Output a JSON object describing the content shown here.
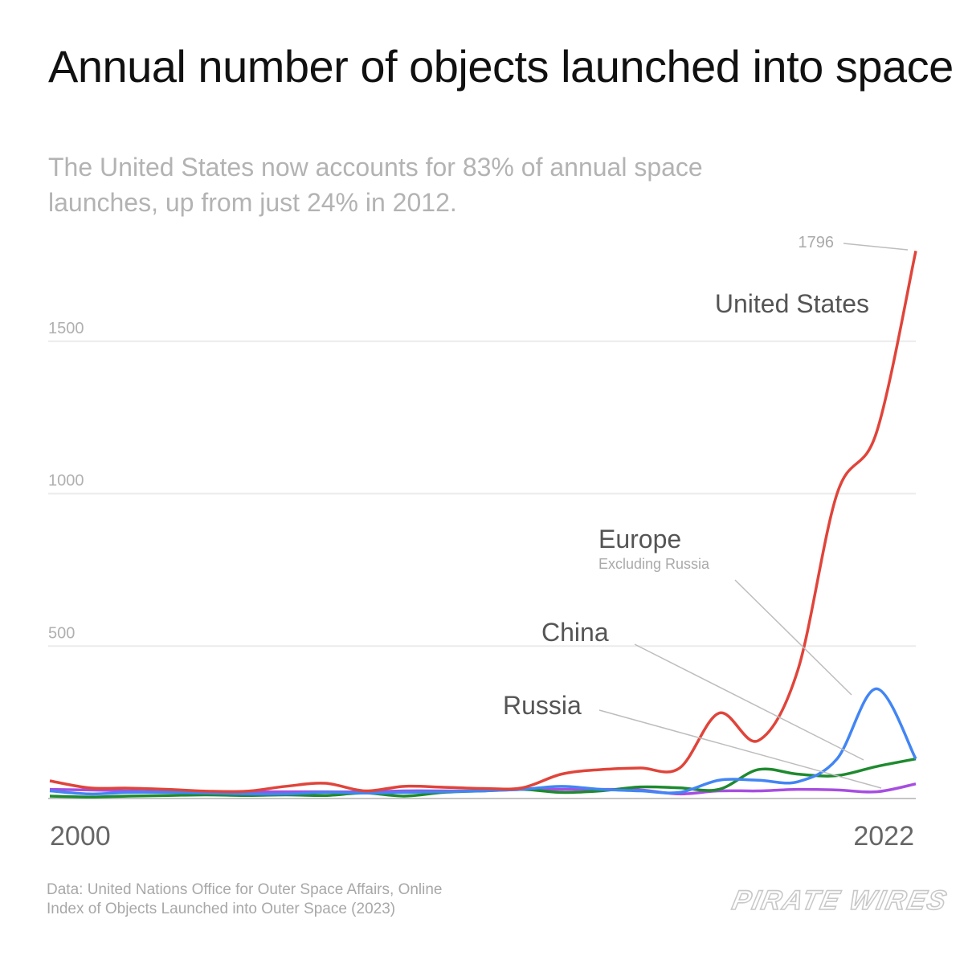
{
  "chart_data": {
    "type": "line",
    "title": "Annual number of objects launched into space",
    "subtitle": "The United States now accounts for 83% of annual space launches, up from just 24% in 2012.",
    "xlabel": "",
    "ylabel": "",
    "x": [
      2000,
      2001,
      2002,
      2003,
      2004,
      2005,
      2006,
      2007,
      2008,
      2009,
      2010,
      2011,
      2012,
      2013,
      2014,
      2015,
      2016,
      2017,
      2018,
      2019,
      2020,
      2021,
      2022
    ],
    "x_tick_labels": [
      "2000",
      "2022"
    ],
    "y_ticks": [
      500,
      1000,
      1500
    ],
    "y_tick_labels": [
      "500",
      "1000",
      "1500"
    ],
    "ylim": [
      0,
      1800
    ],
    "grid": true,
    "series": [
      {
        "name": "United States",
        "sublabel": "",
        "color": "#e0443a",
        "values": [
          58,
          35,
          34,
          30,
          24,
          24,
          40,
          50,
          25,
          40,
          37,
          33,
          35,
          80,
          95,
          100,
          100,
          280,
          190,
          420,
          1000,
          1200,
          1796
        ]
      },
      {
        "name": "Europe",
        "sublabel": "Excluding Russia",
        "color": "#4285f4",
        "values": [
          25,
          15,
          20,
          20,
          18,
          15,
          15,
          20,
          18,
          20,
          22,
          25,
          30,
          40,
          30,
          25,
          20,
          60,
          60,
          55,
          130,
          360,
          130
        ]
      },
      {
        "name": "China",
        "sublabel": "",
        "color": "#1e8a2e",
        "values": [
          8,
          5,
          8,
          10,
          12,
          10,
          12,
          10,
          18,
          8,
          20,
          25,
          30,
          20,
          25,
          38,
          35,
          30,
          95,
          80,
          75,
          105,
          130
        ]
      },
      {
        "name": "Russia",
        "sublabel": "",
        "color": "#a64ee0",
        "values": [
          30,
          28,
          25,
          22,
          22,
          22,
          22,
          22,
          22,
          25,
          25,
          25,
          30,
          30,
          30,
          28,
          15,
          25,
          25,
          30,
          28,
          22,
          48
        ]
      }
    ],
    "annotations": [
      {
        "text": "1796",
        "series": "United States",
        "x": 2022
      }
    ]
  },
  "source": {
    "line1": "Data: United Nations Office for Outer Space Affairs, Online",
    "line2": "Index of Objects Launched into Outer Space (2023)"
  },
  "logo": "PIRATE WIRES"
}
